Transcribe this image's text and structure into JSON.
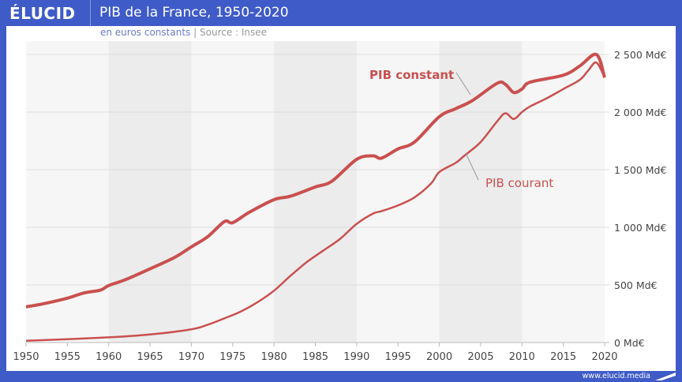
{
  "header": {
    "brand": "ÉLUCID",
    "title": "PIB de la France, 1950-2020",
    "subtitle": "en euros constants",
    "separator": "|",
    "source": "Source : Insee"
  },
  "footer": {
    "url": "www.elucid.media"
  },
  "colors": {
    "frame": "#3f5bc8",
    "line": "#c9504f",
    "band": "#ececec",
    "plot_bg": "#f6f6f6"
  },
  "chart_data": {
    "type": "line",
    "title": "PIB de la France, 1950-2020",
    "xlim": [
      1950,
      2020
    ],
    "ylim": [
      0,
      2500
    ],
    "x_ticks": [
      "1950",
      "1955",
      "1960",
      "1965",
      "1970",
      "1975",
      "1980",
      "1985",
      "1990",
      "1995",
      "2000",
      "2005",
      "2010",
      "2015",
      "2020"
    ],
    "y_ticks": [
      "0 Md€",
      "500 Md€",
      "1 000 Md€",
      "1 500 Md€",
      "2 000 Md€",
      "2 500 Md€"
    ],
    "y_axis_position": "right",
    "shaded_decades": [
      [
        1960,
        1970
      ],
      [
        1980,
        1990
      ],
      [
        2000,
        2010
      ]
    ],
    "series": [
      {
        "name": "PIB constant",
        "x": [
          1950,
          1952,
          1955,
          1957,
          1959,
          1960,
          1962,
          1965,
          1968,
          1970,
          1972,
          1974,
          1975,
          1977,
          1980,
          1982,
          1985,
          1987,
          1990,
          1992,
          1993,
          1995,
          1997,
          2000,
          2002,
          2004,
          2007,
          2008,
          2009,
          2010,
          2011,
          2015,
          2017,
          2019,
          2020
        ],
        "values": [
          310,
          335,
          385,
          430,
          455,
          495,
          545,
          640,
          740,
          830,
          920,
          1050,
          1040,
          1130,
          1240,
          1270,
          1350,
          1400,
          1590,
          1620,
          1600,
          1680,
          1740,
          1960,
          2030,
          2100,
          2250,
          2240,
          2170,
          2200,
          2260,
          2320,
          2400,
          2500,
          2300
        ]
      },
      {
        "name": "PIB courant",
        "x": [
          1950,
          1960,
          1965,
          1970,
          1972,
          1974,
          1976,
          1978,
          1980,
          1982,
          1984,
          1986,
          1988,
          1990,
          1992,
          1993,
          1995,
          1997,
          1999,
          2000,
          2002,
          2003,
          2005,
          2007,
          2008,
          2009,
          2010,
          2011,
          2013,
          2015,
          2017,
          2018,
          2019,
          2020
        ],
        "values": [
          15,
          45,
          70,
          115,
          155,
          210,
          270,
          350,
          450,
          580,
          700,
          800,
          900,
          1030,
          1120,
          1140,
          1190,
          1260,
          1380,
          1480,
          1560,
          1620,
          1740,
          1920,
          1990,
          1940,
          2000,
          2050,
          2120,
          2200,
          2280,
          2360,
          2430,
          2300
        ]
      }
    ]
  }
}
